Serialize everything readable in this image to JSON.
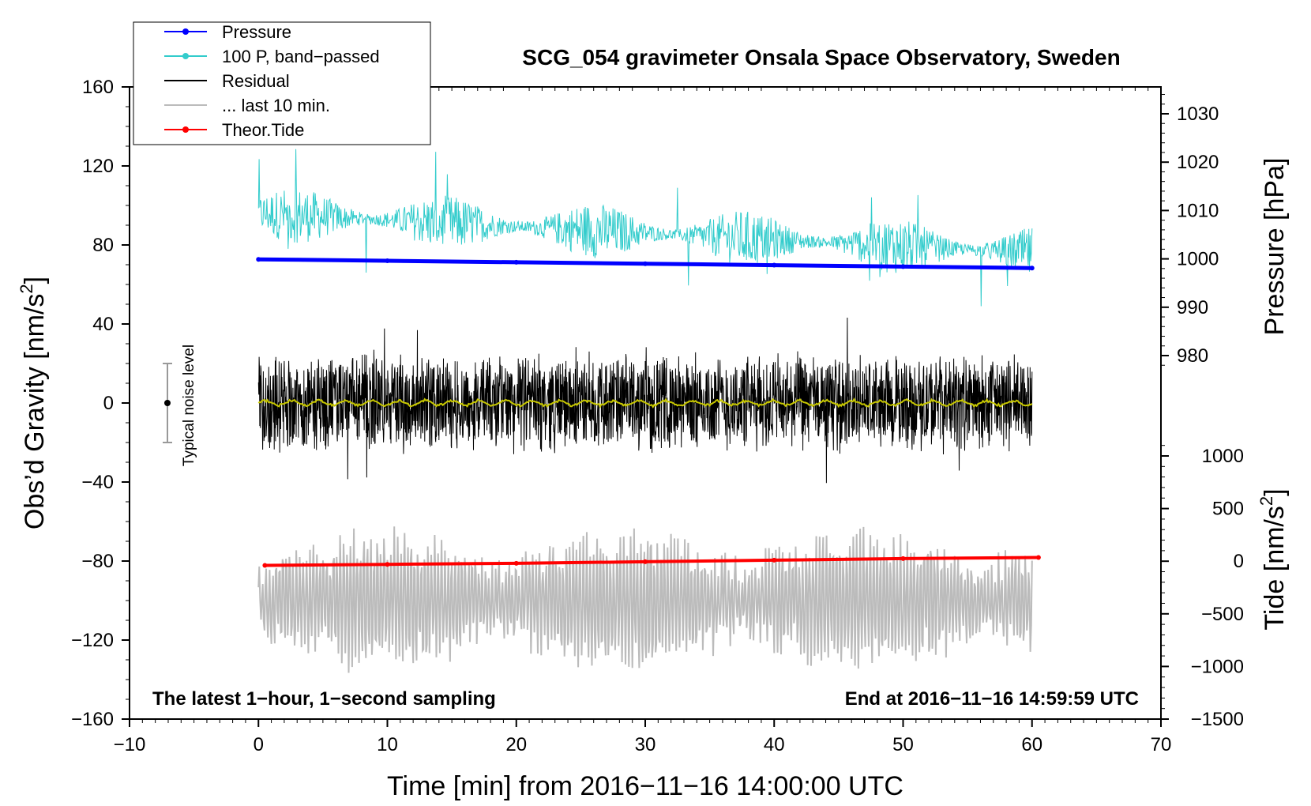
{
  "chart_data": {
    "type": "line",
    "title": "SCG_054 gravimeter Onsala Space Observatory, Sweden",
    "xlabel": "Time [min] from 2016−11−16 14:00:00 UTC",
    "ylabel": "Obs’d Gravity [nm/s",
    "ylabel_sup": "2",
    "ylabel_end": "]",
    "right_top_label": "Pressure [hPa]",
    "right_bottom_label": "Tide [nm/s",
    "right_bottom_sup": "2",
    "right_bottom_end": "]",
    "xlim": [
      -10,
      70
    ],
    "ylim": [
      -160,
      160
    ],
    "pressure_lim": [
      970,
      1035
    ],
    "tide_lim": [
      -1500,
      1500
    ],
    "x_ticks": [
      -10,
      0,
      10,
      20,
      30,
      40,
      50,
      60,
      70
    ],
    "x_tick_labels": [
      "−10",
      "0",
      "10",
      "20",
      "30",
      "40",
      "50",
      "60",
      "70"
    ],
    "y_ticks": [
      -160,
      -120,
      -80,
      -40,
      0,
      40,
      80,
      120,
      160
    ],
    "y_tick_labels": [
      "−160",
      "−120",
      "−80",
      "−40",
      "0",
      "40",
      "80",
      "120",
      "160"
    ],
    "pressure_ticks": [
      980,
      990,
      1000,
      1010,
      1020,
      1030
    ],
    "pressure_tick_labels": [
      "980",
      "990",
      "1000",
      "1010",
      "1020",
      "1030"
    ],
    "tide_ticks": [
      -1500,
      -1000,
      -500,
      0,
      500,
      1000
    ],
    "tide_tick_labels": [
      "−1500",
      "−1000",
      "−500",
      "0",
      "500",
      "1000"
    ],
    "legend": [
      {
        "label": "Pressure",
        "color": "#0000ff",
        "marker": true
      },
      {
        "label": "100 P, band−passed",
        "color": "#33cccc",
        "marker": true
      },
      {
        "label": "Residual",
        "color": "#000000",
        "marker": false
      },
      {
        "label": "... last 10 min.",
        "color": "#bbbbbb",
        "marker": false
      },
      {
        "label": "Theor.Tide",
        "color": "#ff0000",
        "marker": true
      }
    ],
    "annotations": {
      "noise_label": "Typical noise level",
      "noise_center": 0,
      "noise_range": [
        -20,
        20
      ],
      "bottom_left": "The latest 1−hour, 1−second sampling",
      "bottom_right": "End at 2016−11−16 14:59:59 UTC"
    },
    "series": [
      {
        "name": "Pressure",
        "axis": "pressure",
        "color": "#0000ff",
        "x": [
          0,
          10,
          20,
          30,
          40,
          50,
          60
        ],
        "values": [
          999.9,
          999.6,
          999.3,
          999.0,
          998.7,
          998.4,
          998.1
        ]
      },
      {
        "name": "100 P, band−passed",
        "axis": "gravity",
        "color": "#33cccc",
        "baseline_start": 96,
        "baseline_end": 76,
        "amplitude": 14,
        "x_range": [
          0,
          60
        ]
      },
      {
        "name": "Residual",
        "axis": "gravity",
        "color": "#000000",
        "center": 0,
        "amplitude": 22,
        "x_range": [
          0,
          60
        ]
      },
      {
        "name": "Residual (smoothed)",
        "axis": "gravity",
        "color": "#c8c800",
        "center": 0,
        "amplitude": 2,
        "x_range": [
          0,
          60
        ]
      },
      {
        "name": "... last 10 min.",
        "axis": "gravity",
        "color": "#bbbbbb",
        "center": -100,
        "amplitude": 30,
        "x_range": [
          0,
          60
        ]
      },
      {
        "name": "Theor.Tide",
        "axis": "tide",
        "color": "#ff0000",
        "x": [
          0.5,
          10,
          20,
          30,
          40,
          50,
          60.5
        ],
        "values": [
          -40,
          -30,
          -20,
          -5,
          10,
          25,
          35
        ]
      }
    ]
  }
}
